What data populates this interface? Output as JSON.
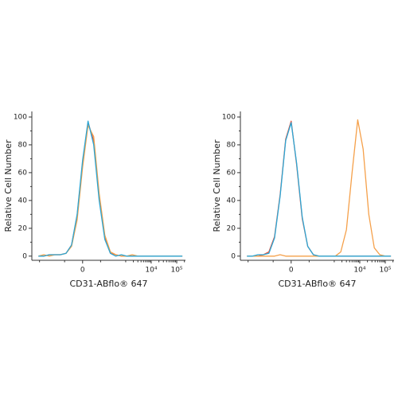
{
  "chart_data": [
    {
      "type": "line",
      "y_label": "Relative Cell Number",
      "x_label": "CD31-ABflo® 647",
      "xscale": "biexponential",
      "x": [
        -1100,
        -680,
        -410,
        -250,
        -150,
        -87,
        -48,
        -21,
        0,
        21,
        48,
        87,
        150,
        250,
        410,
        680,
        1100,
        1800,
        3000,
        5000,
        8300,
        13600,
        22500,
        37000,
        61000,
        100000,
        166000
      ],
      "series": [
        {
          "color": "#e8503a",
          "values": [
            0,
            0,
            1,
            1,
            1,
            2,
            8,
            29,
            67,
            96,
            83,
            42,
            13,
            2,
            1,
            0,
            0,
            0,
            0,
            0,
            0,
            0,
            0,
            0,
            0,
            0,
            0
          ]
        },
        {
          "color": "#f5a04a",
          "values": [
            0,
            1,
            0,
            1,
            1,
            2,
            7,
            26,
            64,
            94,
            86,
            45,
            15,
            3,
            1,
            0,
            0,
            1,
            0,
            0,
            0,
            0,
            0,
            0,
            0,
            0,
            0
          ]
        },
        {
          "color": "#2aa7d6",
          "values": [
            0,
            0,
            1,
            1,
            1,
            2,
            8,
            30,
            69,
            97,
            80,
            40,
            12,
            2,
            0,
            1,
            0,
            0,
            0,
            0,
            0,
            0,
            0,
            0,
            0,
            0,
            0
          ]
        }
      ],
      "xlim": [
        -2000,
        220000
      ],
      "ylim": [
        -3,
        104
      ],
      "xticks": [
        0,
        {
          "value": 10000,
          "label": "10⁴"
        },
        {
          "value": 100000,
          "label": "10⁵"
        }
      ],
      "xminorticks": [
        -1000,
        -100,
        100,
        1000,
        2000,
        3000,
        4000,
        5000,
        6000,
        7000,
        8000,
        9000,
        20000,
        30000,
        40000,
        50000,
        60000,
        70000,
        80000,
        90000,
        200000
      ],
      "yticks": [
        0,
        20,
        40,
        60,
        80,
        100
      ],
      "yminorticks": [
        10,
        30,
        50,
        70,
        90
      ]
    },
    {
      "type": "line",
      "y_label": "Relative Cell Number",
      "x_label": "CD31-ABflo® 647",
      "xscale": "biexponential",
      "x": [
        -1100,
        -680,
        -410,
        -250,
        -150,
        -87,
        -48,
        -21,
        0,
        21,
        48,
        87,
        150,
        250,
        410,
        680,
        1100,
        1800,
        3000,
        5000,
        8300,
        13600,
        22500,
        37000,
        61000,
        100000,
        166000
      ],
      "series": [
        {
          "color": "#e8503a",
          "values": [
            0,
            0,
            0,
            1,
            3,
            14,
            44,
            84,
            97,
            66,
            27,
            7,
            1,
            0,
            0,
            0,
            0,
            0,
            0,
            0,
            0,
            0,
            0,
            0,
            0,
            0,
            0
          ]
        },
        {
          "color": "#f5a04a",
          "values": [
            0,
            0,
            0,
            0,
            0,
            0,
            1,
            0,
            0,
            0,
            0,
            0,
            0,
            0,
            0,
            0,
            0,
            3,
            19,
            60,
            98,
            77,
            30,
            6,
            1,
            0,
            0
          ]
        },
        {
          "color": "#2aa7d6",
          "values": [
            0,
            0,
            1,
            1,
            2,
            13,
            43,
            83,
            96,
            67,
            28,
            7,
            1,
            0,
            0,
            0,
            0,
            0,
            0,
            0,
            0,
            0,
            0,
            0,
            0,
            0,
            0
          ]
        }
      ],
      "xlim": [
        -2000,
        220000
      ],
      "ylim": [
        -3,
        104
      ],
      "xticks": [
        0,
        {
          "value": 10000,
          "label": "10⁴"
        },
        {
          "value": 100000,
          "label": "10⁵"
        }
      ],
      "xminorticks": [
        -1000,
        -100,
        100,
        1000,
        2000,
        3000,
        4000,
        5000,
        6000,
        7000,
        8000,
        9000,
        20000,
        30000,
        40000,
        50000,
        60000,
        70000,
        80000,
        90000,
        200000
      ],
      "yticks": [
        0,
        20,
        40,
        60,
        80,
        100
      ],
      "yminorticks": [
        10,
        30,
        50,
        70,
        90
      ]
    }
  ]
}
